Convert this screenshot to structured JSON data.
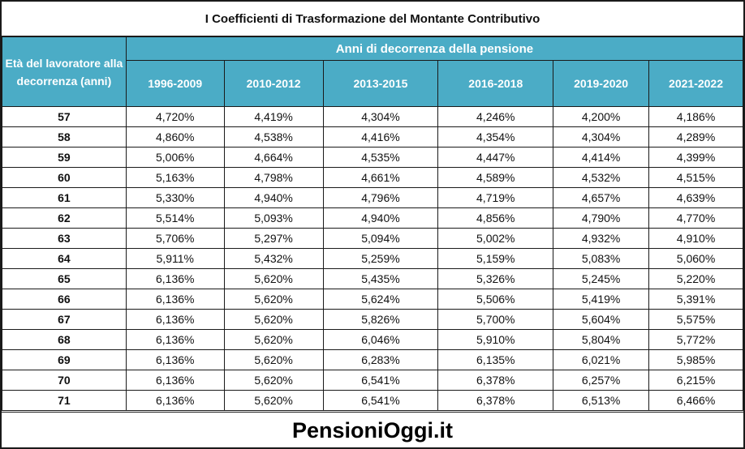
{
  "title": "I Coefficienti di Trasformazione del Montante Contributivo",
  "header": {
    "age_label": "Età del lavoratore alla decorrenza (anni)",
    "group_label": "Anni di decorrenza della pensione",
    "years": [
      "1996-2009",
      "2010-2012",
      "2013-2015",
      "2016-2018",
      "2019-2020",
      "2021-2022"
    ]
  },
  "rows": [
    {
      "age": "57",
      "values": [
        "4,720%",
        "4,419%",
        "4,304%",
        "4,246%",
        "4,200%",
        "4,186%"
      ]
    },
    {
      "age": "58",
      "values": [
        "4,860%",
        "4,538%",
        "4,416%",
        "4,354%",
        "4,304%",
        "4,289%"
      ]
    },
    {
      "age": "59",
      "values": [
        "5,006%",
        "4,664%",
        "4,535%",
        "4,447%",
        "4,414%",
        "4,399%"
      ]
    },
    {
      "age": "60",
      "values": [
        "5,163%",
        "4,798%",
        "4,661%",
        "4,589%",
        "4,532%",
        "4,515%"
      ]
    },
    {
      "age": "61",
      "values": [
        "5,330%",
        "4,940%",
        "4,796%",
        "4,719%",
        "4,657%",
        "4,639%"
      ]
    },
    {
      "age": "62",
      "values": [
        "5,514%",
        "5,093%",
        "4,940%",
        "4,856%",
        "4,790%",
        "4,770%"
      ]
    },
    {
      "age": "63",
      "values": [
        "5,706%",
        "5,297%",
        "5,094%",
        "5,002%",
        "4,932%",
        "4,910%"
      ]
    },
    {
      "age": "64",
      "values": [
        "5,911%",
        "5,432%",
        "5,259%",
        "5,159%",
        "5,083%",
        "5,060%"
      ]
    },
    {
      "age": "65",
      "values": [
        "6,136%",
        "5,620%",
        "5,435%",
        "5,326%",
        "5,245%",
        "5,220%"
      ]
    },
    {
      "age": "66",
      "values": [
        "6,136%",
        "5,620%",
        "5,624%",
        "5,506%",
        "5,419%",
        "5,391%"
      ]
    },
    {
      "age": "67",
      "values": [
        "6,136%",
        "5,620%",
        "5,826%",
        "5,700%",
        "5,604%",
        "5,575%"
      ]
    },
    {
      "age": "68",
      "values": [
        "6,136%",
        "5,620%",
        "6,046%",
        "5,910%",
        "5,804%",
        "5,772%"
      ]
    },
    {
      "age": "69",
      "values": [
        "6,136%",
        "5,620%",
        "6,283%",
        "6,135%",
        "6,021%",
        "5,985%"
      ]
    },
    {
      "age": "70",
      "values": [
        "6,136%",
        "5,620%",
        "6,541%",
        "6,378%",
        "6,257%",
        "6,215%"
      ]
    },
    {
      "age": "71",
      "values": [
        "6,136%",
        "5,620%",
        "6,541%",
        "6,378%",
        "6,513%",
        "6,466%"
      ]
    }
  ],
  "footer": "PensioniOggi.it",
  "colors": {
    "header_bg": "#4bacc6",
    "header_text": "#ffffff"
  }
}
